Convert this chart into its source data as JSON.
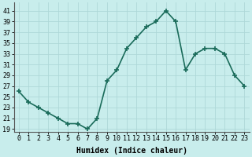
{
  "x": [
    0,
    1,
    2,
    3,
    4,
    5,
    6,
    7,
    8,
    9,
    10,
    11,
    12,
    13,
    14,
    15,
    16,
    17,
    18,
    19,
    20,
    21,
    22,
    23
  ],
  "y": [
    26,
    24,
    23,
    22,
    21,
    20,
    20,
    19,
    21,
    28,
    30,
    34,
    36,
    38,
    39,
    41,
    39,
    30,
    33,
    34,
    34,
    33,
    29,
    27
  ],
  "line_color": "#1a6b5a",
  "marker": "+",
  "marker_size": 4,
  "marker_edge_width": 1.2,
  "bg_color": "#c8edec",
  "grid_color": "#aed8d8",
  "xlabel": "Humidex (Indice chaleur)",
  "xlabel_fontsize": 7,
  "ylabel_ticks": [
    19,
    21,
    23,
    25,
    27,
    29,
    31,
    33,
    35,
    37,
    39,
    41
  ],
  "xlim": [
    -0.5,
    23.5
  ],
  "ylim": [
    18.5,
    42.5
  ],
  "tick_fontsize": 6,
  "line_width": 1.2
}
